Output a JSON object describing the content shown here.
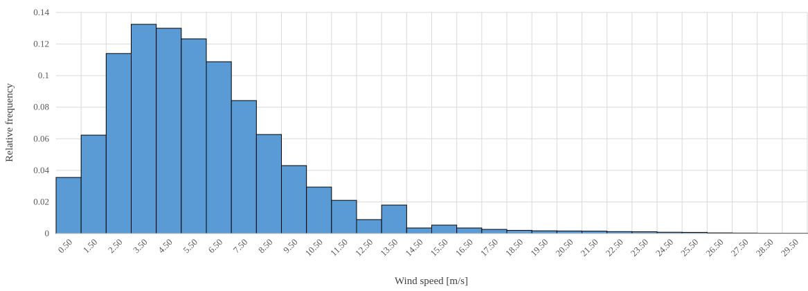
{
  "chart_data": {
    "type": "bar",
    "x_label": "Wind speed [m/s]",
    "y_label": "Relative frequency",
    "categories": [
      "0.50",
      "1.50",
      "2.50",
      "3.50",
      "4.50",
      "5.50",
      "6.50",
      "7.50",
      "8.50",
      "9.50",
      "10.50",
      "11.50",
      "12.50",
      "13.50",
      "14.50",
      "15.50",
      "16.50",
      "17.50",
      "18.50",
      "19.50",
      "20.50",
      "21.50",
      "22.50",
      "23.50",
      "24.50",
      "25.50",
      "26.50",
      "27.50",
      "28.50",
      "29.50"
    ],
    "values": [
      0.0355,
      0.0623,
      0.114,
      0.1325,
      0.13,
      0.1233,
      0.1088,
      0.0842,
      0.0627,
      0.043,
      0.0294,
      0.021,
      0.0088,
      0.018,
      0.0035,
      0.0053,
      0.0035,
      0.0026,
      0.002,
      0.0017,
      0.0016,
      0.0015,
      0.0012,
      0.0011,
      0.0008,
      0.0007,
      0.0004,
      0.0003,
      0.0002,
      0.0002
    ],
    "color": "#5b9bd5",
    "ylim": [
      0,
      0.14
    ],
    "yticks": [
      0,
      0.02,
      0.04,
      0.06,
      0.08,
      0.1,
      0.12,
      0.14
    ],
    "grid": true
  }
}
